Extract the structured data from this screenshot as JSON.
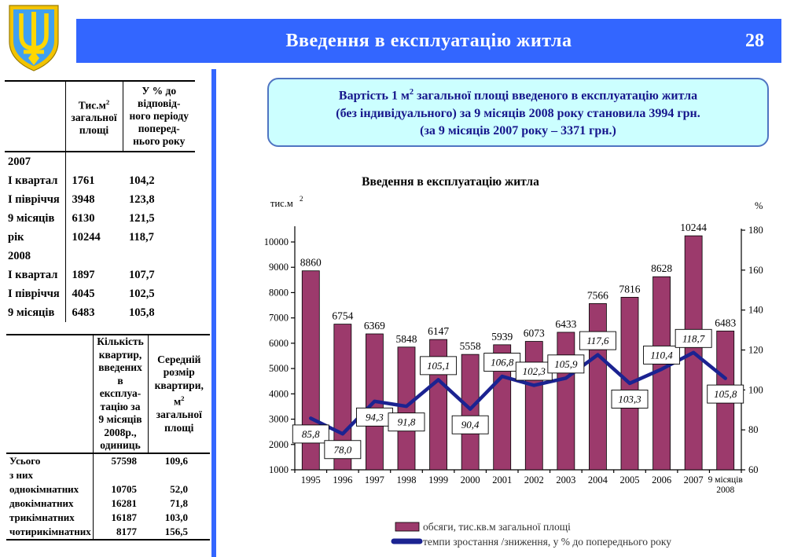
{
  "header": {
    "title": "Введення в експлуатацію житла",
    "slide_number": "28"
  },
  "emblem": {
    "icon": "ukraine-trident-coat-of-arms"
  },
  "colors": {
    "header_blue": "#3366FF",
    "divider_blue": "#3366FF",
    "bar": "#9C3A6C",
    "line": "#1B2391",
    "info_fill": "#CCFFFF",
    "info_border": "#4F74C2",
    "info_text": "#16168C",
    "legend_text": "#333333"
  },
  "table1": {
    "col2_pre": "Тис.м",
    "col2_sup": "2",
    "col2_rest": "загальної\nплощі",
    "col3": "У % до\nвідповід-\nного періоду\nпоперед-\nнього року",
    "rows": [
      {
        "label": "2007",
        "v1": "",
        "v2": ""
      },
      {
        "label": "І квартал",
        "v1": "1761",
        "v2": "104,2"
      },
      {
        "label": "І півріччя",
        "v1": "3948",
        "v2": "123,8"
      },
      {
        "label": "9 місяців",
        "v1": "6130",
        "v2": "121,5"
      },
      {
        "label": "рік",
        "v1": "10244",
        "v2": "118,7"
      },
      {
        "label": "2008",
        "v1": "",
        "v2": ""
      },
      {
        "label": "І квартал",
        "v1": "1897",
        "v2": "107,7"
      },
      {
        "label": "І півріччя",
        "v1": "4045",
        "v2": "102,5"
      },
      {
        "label": "9 місяців",
        "v1": "6483",
        "v2": "105,8"
      }
    ]
  },
  "table2": {
    "col2": "Кількість\nквартир,\nвведених\nв експлуа-\nтацію за\n9 місяців\n2008р.,\nодиниць",
    "col3_part1": "Середній\nрозмір\nквартири,",
    "col3_pre": "м",
    "col3_sup": "2",
    "col3_part2": "загальної\nплощі",
    "rows": [
      {
        "label": "Усього",
        "v1": "57598",
        "v2": "109,6"
      },
      {
        "label": "з них",
        "v1": "",
        "v2": ""
      },
      {
        "label": "однокімнатних",
        "v1": "10705",
        "v2": "52,0"
      },
      {
        "label": "двокімнатних",
        "v1": "16281",
        "v2": "71,8"
      },
      {
        "label": "трикімнатних",
        "v1": "16187",
        "v2": "103,0"
      },
      {
        "label": "чотирикімнатних",
        "v1": "8177",
        "v2": "156,5"
      }
    ]
  },
  "info_box": {
    "line1_pre": "Вартість 1 м",
    "line1_sup": "2",
    "line1_post": " загальної площі введеного в експлуатацію житла",
    "line2": "(без індивідуального) за 9 місяців 2008 року становила 3994 грн.",
    "line3": "(за 9 місяців 2007 року – 3371 грн.)"
  },
  "chart_data": {
    "type": "bar+line",
    "title": "Введення в експлуатацію житла",
    "left_axis": {
      "label_pre": "тис.м",
      "label_sup": "2",
      "min": 1000,
      "max": 10000,
      "step": 1000
    },
    "right_axis": {
      "label": "%",
      "min": 60,
      "max": 180,
      "step": 20
    },
    "categories": [
      "1995",
      "1996",
      "1997",
      "1998",
      "1999",
      "2000",
      "2001",
      "2002",
      "2003",
      "2004",
      "2005",
      "2006",
      "2007",
      "9 місяців\n2008"
    ],
    "grid": false,
    "legend_position": "bottom",
    "series": [
      {
        "name": "обсяги, тис.кв.м загальної площі",
        "type": "bar",
        "color": "#9C3A6C",
        "values": [
          8860,
          6754,
          6369,
          5848,
          6147,
          5558,
          5939,
          6073,
          6433,
          7566,
          7816,
          8628,
          10244,
          6483
        ]
      },
      {
        "name": "темпи зростання /зниження, у % до попереднього року",
        "type": "line",
        "color": "#1B2391",
        "values": [
          85.8,
          78.0,
          94.3,
          91.8,
          105.1,
          90.4,
          106.8,
          102.3,
          105.9,
          117.6,
          103.3,
          110.4,
          118.7,
          105.8
        ],
        "point_labels": [
          "85,8",
          "78,0",
          "94,3",
          "91,8",
          "105,1",
          "90,4",
          "106,8",
          "102,3",
          "105,9",
          "117,6",
          "103,3",
          "110,4",
          "118,7",
          "105,8"
        ],
        "label_positions": [
          "below",
          "below",
          "below",
          "below",
          "above",
          "below",
          "above",
          "above",
          "above",
          "above",
          "below",
          "above",
          "above",
          "below"
        ]
      }
    ]
  }
}
